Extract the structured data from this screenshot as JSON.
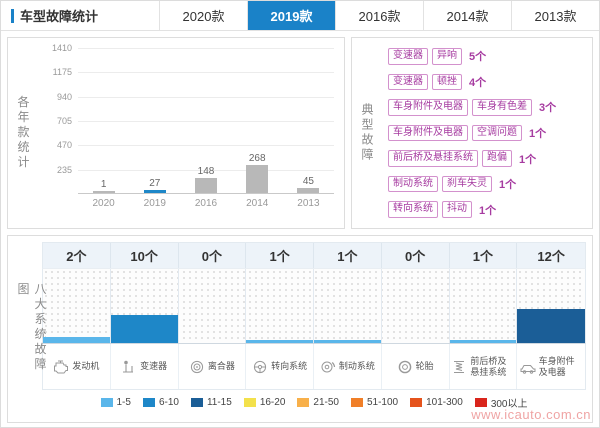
{
  "header": {
    "title": "车型故障统计",
    "tabs": [
      {
        "label": "2020款",
        "selected": false
      },
      {
        "label": "2019款",
        "selected": true
      },
      {
        "label": "2016款",
        "selected": false
      },
      {
        "label": "2014款",
        "selected": false
      },
      {
        "label": "2013款",
        "selected": false
      }
    ]
  },
  "yearly_chart": {
    "side_label": "各年款统计",
    "chart_data": {
      "type": "bar",
      "categories": [
        "2020",
        "2019",
        "2016",
        "2014",
        "2013"
      ],
      "values": [
        1,
        27,
        148,
        268,
        45
      ],
      "ylim": [
        0,
        1410
      ],
      "yticks": [
        235,
        470,
        705,
        940,
        1175,
        1410
      ],
      "highlight_category": "2019",
      "bar_color_default": "#b8b8b8",
      "bar_color_highlight": "#1e87c8",
      "grid": "horizontal"
    }
  },
  "typical_faults": {
    "side_label": "典型故障",
    "tag_color": "#a63ba0",
    "items": [
      {
        "tags": [
          "变速器",
          "异响"
        ],
        "count": "5个"
      },
      {
        "tags": [
          "变速器",
          "顿挫"
        ],
        "count": "4个"
      },
      {
        "tags": [
          "车身附件及电器",
          "车身有色差"
        ],
        "count": "3个"
      },
      {
        "tags": [
          "车身附件及电器",
          "空调问题"
        ],
        "count": "1个"
      },
      {
        "tags": [
          "前后桥及悬挂系统",
          "跑偏"
        ],
        "count": "1个"
      },
      {
        "tags": [
          "制动系统",
          "刹车失灵"
        ],
        "count": "1个"
      },
      {
        "tags": [
          "转向系统",
          "抖动"
        ],
        "count": "1个"
      }
    ]
  },
  "systems_chart": {
    "side_label": "八大系统故障图",
    "chart_data": {
      "type": "bar",
      "categories": [
        "发动机",
        "变速器",
        "离合器",
        "转向系统",
        "制动系统",
        "轮胎",
        "前后桥及悬挂系统",
        "车身附件及电器"
      ],
      "values": [
        2,
        10,
        0,
        1,
        1,
        0,
        1,
        12
      ],
      "counts": [
        "2个",
        "10个",
        "0个",
        "1个",
        "1个",
        "0个",
        "1个",
        "12个"
      ],
      "icons": [
        "engine-icon",
        "transmission-icon",
        "clutch-icon",
        "steering-icon",
        "brake-icon",
        "tire-icon",
        "suspension-icon",
        "body-electrical-icon"
      ],
      "grid": "dotted",
      "legend_position": "bottom",
      "legend": [
        {
          "range": "1-5",
          "color": "#5ab6ea"
        },
        {
          "range": "6-10",
          "color": "#1e87c8"
        },
        {
          "range": "11-15",
          "color": "#1b5e97"
        },
        {
          "range": "16-20",
          "color": "#f3e14b"
        },
        {
          "range": "21-50",
          "color": "#f8b04a"
        },
        {
          "range": "51-100",
          "color": "#f07f28"
        },
        {
          "range": "101-300",
          "color": "#e5531c"
        },
        {
          "range": "300以上",
          "color": "#d9251c"
        }
      ]
    }
  },
  "watermark": "www.icauto.com.cn"
}
